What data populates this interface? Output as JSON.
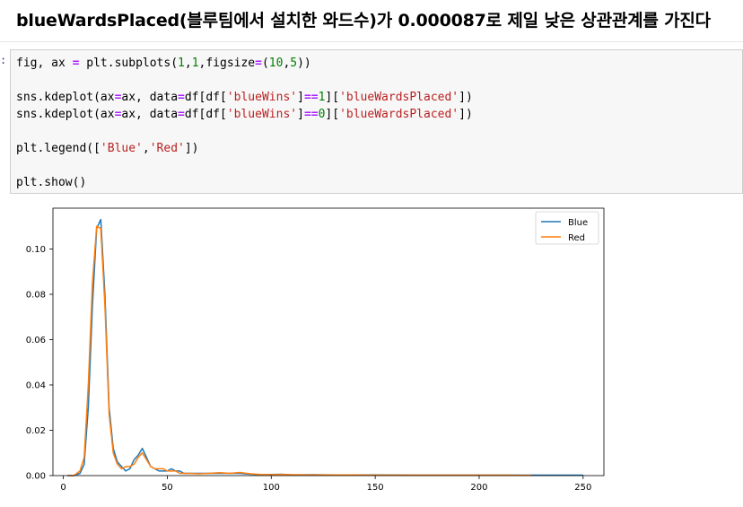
{
  "heading": "blueWardsPlaced(블루팀에서 설치한 와드수)가 0.000087로 제일 낮은 상관관계를 가진다",
  "prompt": ":",
  "code": {
    "line1": [
      {
        "t": "fig, ax ",
        "c": ""
      },
      {
        "t": "=",
        "c": "eq"
      },
      {
        "t": " plt.subplots(",
        "c": ""
      },
      {
        "t": "1",
        "c": "num"
      },
      {
        "t": ",",
        "c": ""
      },
      {
        "t": "1",
        "c": "num"
      },
      {
        "t": ",figsize",
        "c": ""
      },
      {
        "t": "=",
        "c": "eq"
      },
      {
        "t": "(",
        "c": ""
      },
      {
        "t": "10",
        "c": "num"
      },
      {
        "t": ",",
        "c": ""
      },
      {
        "t": "5",
        "c": "num"
      },
      {
        "t": "))",
        "c": ""
      }
    ],
    "line2": [],
    "line3": [
      {
        "t": "sns.kdeplot(ax",
        "c": ""
      },
      {
        "t": "=",
        "c": "eq"
      },
      {
        "t": "ax, data",
        "c": ""
      },
      {
        "t": "=",
        "c": "eq"
      },
      {
        "t": "df[df[",
        "c": ""
      },
      {
        "t": "'blueWins'",
        "c": "str"
      },
      {
        "t": "]",
        "c": ""
      },
      {
        "t": "==",
        "c": "eq"
      },
      {
        "t": "1",
        "c": "num"
      },
      {
        "t": "][",
        "c": ""
      },
      {
        "t": "'blueWardsPlaced'",
        "c": "str"
      },
      {
        "t": "])",
        "c": ""
      }
    ],
    "line4": [
      {
        "t": "sns.kdeplot(ax",
        "c": ""
      },
      {
        "t": "=",
        "c": "eq"
      },
      {
        "t": "ax, data",
        "c": ""
      },
      {
        "t": "=",
        "c": "eq"
      },
      {
        "t": "df[df[",
        "c": ""
      },
      {
        "t": "'blueWins'",
        "c": "str"
      },
      {
        "t": "]",
        "c": ""
      },
      {
        "t": "==",
        "c": "eq"
      },
      {
        "t": "0",
        "c": "num"
      },
      {
        "t": "][",
        "c": ""
      },
      {
        "t": "'blueWardsPlaced'",
        "c": "str"
      },
      {
        "t": "])",
        "c": ""
      }
    ],
    "line5": [],
    "line6": [
      {
        "t": "plt.legend([",
        "c": ""
      },
      {
        "t": "'Blue'",
        "c": "str"
      },
      {
        "t": ",",
        "c": ""
      },
      {
        "t": "'Red'",
        "c": "str"
      },
      {
        "t": "])",
        "c": ""
      }
    ],
    "line7": [],
    "line8": [
      {
        "t": "plt.show()",
        "c": ""
      }
    ]
  },
  "chart_data": {
    "type": "line",
    "title": "",
    "xlabel": "",
    "ylabel": "",
    "xlim": [
      -5,
      260
    ],
    "ylim": [
      0,
      0.118
    ],
    "xticks": [
      0,
      50,
      100,
      150,
      200,
      250
    ],
    "yticks": [
      0.0,
      0.02,
      0.04,
      0.06,
      0.08,
      0.1
    ],
    "ytick_labels": [
      "0.00",
      "0.02",
      "0.04",
      "0.06",
      "0.08",
      "0.10"
    ],
    "xtick_labels": [
      "0",
      "50",
      "100",
      "150",
      "200",
      "250"
    ],
    "grid": false,
    "legend_position": "top-right",
    "colors": {
      "Blue": "#1f77b4",
      "Red": "#ff7f0e"
    },
    "series": [
      {
        "name": "Blue",
        "x": [
          2,
          5,
          8,
          10,
          12,
          14,
          16,
          18,
          20,
          22,
          24,
          26,
          28,
          30,
          32,
          34,
          36,
          38,
          40,
          42,
          44,
          46,
          48,
          50,
          52,
          54,
          56,
          58,
          60,
          65,
          70,
          75,
          80,
          85,
          90,
          95,
          100,
          105,
          110,
          120,
          130,
          140,
          150,
          170,
          190,
          210,
          230,
          250
        ],
        "y": [
          0.0,
          0.0,
          0.001,
          0.005,
          0.03,
          0.075,
          0.109,
          0.113,
          0.08,
          0.03,
          0.012,
          0.006,
          0.004,
          0.002,
          0.003,
          0.007,
          0.009,
          0.012,
          0.008,
          0.004,
          0.003,
          0.002,
          0.002,
          0.002,
          0.003,
          0.002,
          0.002,
          0.001,
          0.001,
          0.001,
          0.001,
          0.001,
          0.001,
          0.001,
          0.0006,
          0.0004,
          0.0005,
          0.0006,
          0.0003,
          0.0004,
          0.0003,
          0.0003,
          0.0003,
          0.0002,
          0.0002,
          0.0002,
          0.0002,
          0.0002
        ]
      },
      {
        "name": "Red",
        "x": [
          2,
          5,
          8,
          10,
          12,
          14,
          16,
          18,
          20,
          22,
          24,
          26,
          28,
          30,
          32,
          34,
          36,
          38,
          40,
          42,
          44,
          46,
          48,
          50,
          52,
          54,
          56,
          58,
          60,
          65,
          70,
          75,
          80,
          85,
          90,
          95,
          100,
          105,
          110,
          120,
          130,
          140,
          150,
          170,
          190,
          210,
          225
        ],
        "y": [
          0.0,
          0.0,
          0.002,
          0.008,
          0.04,
          0.085,
          0.11,
          0.109,
          0.075,
          0.027,
          0.01,
          0.005,
          0.003,
          0.004,
          0.004,
          0.005,
          0.008,
          0.01,
          0.007,
          0.004,
          0.003,
          0.003,
          0.003,
          0.002,
          0.002,
          0.002,
          0.001,
          0.001,
          0.001,
          0.0008,
          0.001,
          0.0013,
          0.001,
          0.0014,
          0.0008,
          0.0005,
          0.0004,
          0.0005,
          0.0004,
          0.0003,
          0.0003,
          0.0003,
          0.0002,
          0.0002,
          0.0002,
          0.0002,
          0.0001
        ]
      }
    ]
  }
}
